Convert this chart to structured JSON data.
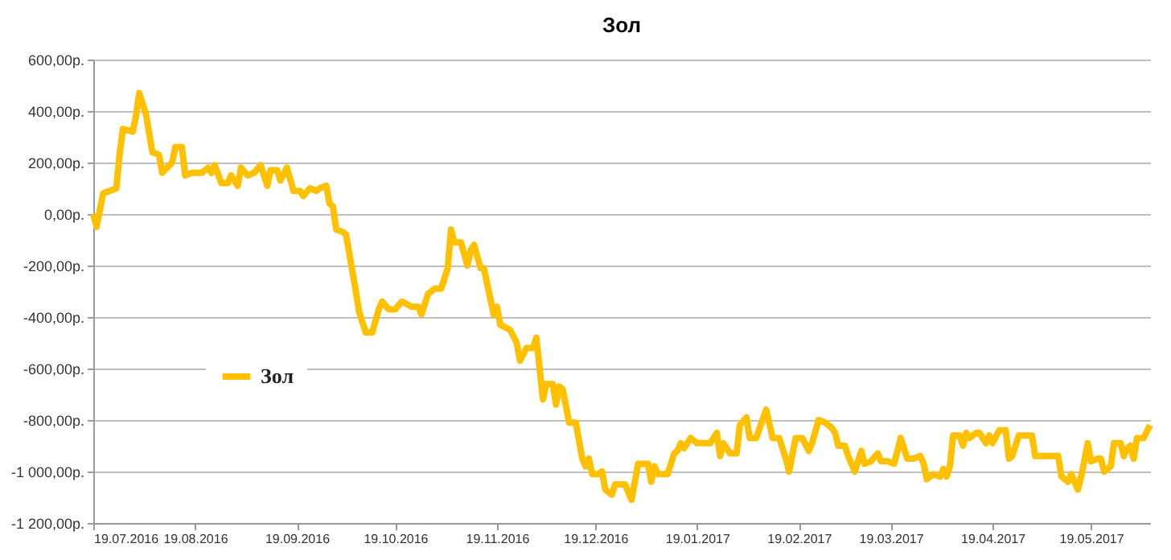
{
  "chart_data": {
    "type": "line",
    "title": "Зол",
    "x": [
      "2016-07-19",
      "2016-07-20",
      "2016-07-22",
      "2016-07-24",
      "2016-07-26",
      "2016-07-27",
      "2016-07-28",
      "2016-07-31",
      "2016-08-01",
      "2016-08-02",
      "2016-08-04",
      "2016-08-06",
      "2016-08-08",
      "2016-08-09",
      "2016-08-12",
      "2016-08-13",
      "2016-08-15",
      "2016-08-16",
      "2016-08-18",
      "2016-08-21",
      "2016-08-23",
      "2016-08-24",
      "2016-08-25",
      "2016-08-27",
      "2016-08-29",
      "2016-08-30",
      "2016-09-01",
      "2016-09-02",
      "2016-09-04",
      "2016-09-06",
      "2016-09-08",
      "2016-09-10",
      "2016-09-11",
      "2016-09-13",
      "2016-09-14",
      "2016-09-16",
      "2016-09-18",
      "2016-09-20",
      "2016-09-21",
      "2016-09-23",
      "2016-09-25",
      "2016-09-26",
      "2016-09-28",
      "2016-09-29",
      "2016-09-30",
      "2016-10-01",
      "2016-10-03",
      "2016-10-04",
      "2016-10-07",
      "2016-10-08",
      "2016-10-10",
      "2016-10-12",
      "2016-10-14",
      "2016-10-15",
      "2016-10-17",
      "2016-10-19",
      "2016-10-21",
      "2016-10-24",
      "2016-10-26",
      "2016-10-27",
      "2016-10-29",
      "2016-10-31",
      "2016-11-02",
      "2016-11-04",
      "2016-11-05",
      "2016-11-06",
      "2016-11-08",
      "2016-11-10",
      "2016-11-11",
      "2016-11-12",
      "2016-11-14",
      "2016-11-15",
      "2016-11-17",
      "2016-11-18",
      "2016-11-19",
      "2016-11-20",
      "2016-11-23",
      "2016-11-25",
      "2016-11-26",
      "2016-11-28",
      "2016-11-30",
      "2016-12-01",
      "2016-12-02",
      "2016-12-03",
      "2016-12-04",
      "2016-12-06",
      "2016-12-07",
      "2016-12-08",
      "2016-12-09",
      "2016-12-11",
      "2016-12-13",
      "2016-12-15",
      "2016-12-16",
      "2016-12-17",
      "2016-12-18",
      "2016-12-20",
      "2016-12-21",
      "2016-12-22",
      "2016-12-24",
      "2016-12-25",
      "2016-12-28",
      "2016-12-30",
      "2017-01-01",
      "2017-01-04",
      "2017-01-05",
      "2017-01-06",
      "2017-01-07",
      "2017-01-10",
      "2017-01-12",
      "2017-01-13",
      "2017-01-14",
      "2017-01-15",
      "2017-01-17",
      "2017-01-19",
      "2017-01-23",
      "2017-01-25",
      "2017-01-26",
      "2017-01-27",
      "2017-01-29",
      "2017-01-31",
      "2017-02-01",
      "2017-02-03",
      "2017-02-04",
      "2017-02-06",
      "2017-02-09",
      "2017-02-11",
      "2017-02-13",
      "2017-02-15",
      "2017-02-16",
      "2017-02-18",
      "2017-02-20",
      "2017-02-22",
      "2017-02-23",
      "2017-02-25",
      "2017-02-27",
      "2017-03-01",
      "2017-03-02",
      "2017-03-03",
      "2017-03-05",
      "2017-03-06",
      "2017-03-08",
      "2017-03-09",
      "2017-03-10",
      "2017-03-11",
      "2017-03-13",
      "2017-03-15",
      "2017-03-16",
      "2017-03-18",
      "2017-03-20",
      "2017-03-22",
      "2017-03-24",
      "2017-03-26",
      "2017-03-28",
      "2017-03-29",
      "2017-03-30",
      "2017-04-01",
      "2017-04-03",
      "2017-04-04",
      "2017-04-05",
      "2017-04-06",
      "2017-04-07",
      "2017-04-09",
      "2017-04-10",
      "2017-04-11",
      "2017-04-12",
      "2017-04-14",
      "2017-04-15",
      "2017-04-17",
      "2017-04-18",
      "2017-04-19",
      "2017-04-21",
      "2017-04-23",
      "2017-04-24",
      "2017-04-25",
      "2017-04-27",
      "2017-05-01",
      "2017-05-02",
      "2017-05-04",
      "2017-05-09",
      "2017-05-10",
      "2017-05-12",
      "2017-05-13",
      "2017-05-15",
      "2017-05-16",
      "2017-05-18",
      "2017-05-19",
      "2017-05-21",
      "2017-05-22",
      "2017-05-23",
      "2017-05-25",
      "2017-05-26",
      "2017-05-28",
      "2017-05-29",
      "2017-05-30",
      "2017-05-31",
      "2017-06-01",
      "2017-06-02",
      "2017-06-04",
      "2017-06-06"
    ],
    "series": [
      {
        "name": "Зол",
        "color": "#ffc000",
        "values": [
          0,
          -50,
          80,
          90,
          100,
          230,
          330,
          320,
          380,
          470,
          390,
          240,
          230,
          160,
          200,
          260,
          260,
          150,
          160,
          160,
          180,
          160,
          190,
          120,
          120,
          150,
          110,
          180,
          150,
          160,
          190,
          110,
          170,
          170,
          130,
          180,
          90,
          90,
          70,
          100,
          90,
          100,
          110,
          40,
          30,
          -60,
          -70,
          -80,
          -300,
          -380,
          -460,
          -460,
          -370,
          -340,
          -370,
          -370,
          -340,
          -360,
          -360,
          -390,
          -310,
          -290,
          -290,
          -210,
          -60,
          -110,
          -110,
          -200,
          -140,
          -120,
          -210,
          -210,
          -330,
          -390,
          -360,
          -430,
          -450,
          -500,
          -570,
          -520,
          -520,
          -480,
          -600,
          -720,
          -660,
          -660,
          -740,
          -670,
          -680,
          -810,
          -810,
          -950,
          -980,
          -950,
          -1010,
          -1010,
          -1000,
          -1070,
          -1090,
          -1050,
          -1050,
          -1110,
          -970,
          -970,
          -1040,
          -980,
          -1010,
          -1010,
          -930,
          -920,
          -890,
          -910,
          -870,
          -890,
          -890,
          -850,
          -940,
          -890,
          -930,
          -930,
          -820,
          -790,
          -870,
          -870,
          -760,
          -870,
          -870,
          -950,
          -1000,
          -870,
          -870,
          -920,
          -890,
          -800,
          -810,
          -830,
          -850,
          -900,
          -900,
          -940,
          -1000,
          -960,
          -920,
          -970,
          -960,
          -930,
          -960,
          -960,
          -970,
          -870,
          -950,
          -950,
          -940,
          -970,
          -1030,
          -1010,
          -1020,
          -990,
          -1020,
          -980,
          -860,
          -860,
          -900,
          -850,
          -870,
          -850,
          -850,
          -890,
          -860,
          -890,
          -840,
          -840,
          -950,
          -940,
          -860,
          -860,
          -940,
          -940,
          -940,
          -1020,
          -1040,
          -1010,
          -1070,
          -1020,
          -890,
          -960,
          -950,
          -950,
          -1000,
          -980,
          -890,
          -890,
          -940,
          -910,
          -900,
          -950,
          -870,
          -870,
          -820
        ]
      }
    ],
    "xlim": [
      "2016-07-19",
      "2017-06-06"
    ],
    "xticks": [
      {
        "value": "2016-07-19",
        "label": "19.07.2016"
      },
      {
        "value": "2016-08-19",
        "label": "19.08.2016"
      },
      {
        "value": "2016-09-19",
        "label": "19.09.2016"
      },
      {
        "value": "2016-10-19",
        "label": "19.10.2016"
      },
      {
        "value": "2016-11-19",
        "label": "19.11.2016"
      },
      {
        "value": "2016-12-19",
        "label": "19.12.2016"
      },
      {
        "value": "2017-01-19",
        "label": "19.01.2017"
      },
      {
        "value": "2017-02-19",
        "label": "19.02.2017"
      },
      {
        "value": "2017-03-19",
        "label": "19.03.2017"
      },
      {
        "value": "2017-04-19",
        "label": "19.04.2017"
      },
      {
        "value": "2017-05-19",
        "label": "19.05.2017"
      }
    ],
    "ylim": [
      -1200,
      600
    ],
    "yticks": [
      {
        "value": 600,
        "label": "600,00р."
      },
      {
        "value": 400,
        "label": "400,00р."
      },
      {
        "value": 200,
        "label": "200,00р."
      },
      {
        "value": 0,
        "label": "0,00р."
      },
      {
        "value": -200,
        "label": "-200,00р."
      },
      {
        "value": -400,
        "label": "-400,00р."
      },
      {
        "value": -600,
        "label": "-600,00р."
      },
      {
        "value": -800,
        "label": "-800,00р."
      },
      {
        "value": -1000,
        "label": "-1 000,00р."
      },
      {
        "value": -1200,
        "label": "-1 200,00р."
      }
    ],
    "grid": "y",
    "legend": "left",
    "marker": "none",
    "line_style": "solid"
  }
}
